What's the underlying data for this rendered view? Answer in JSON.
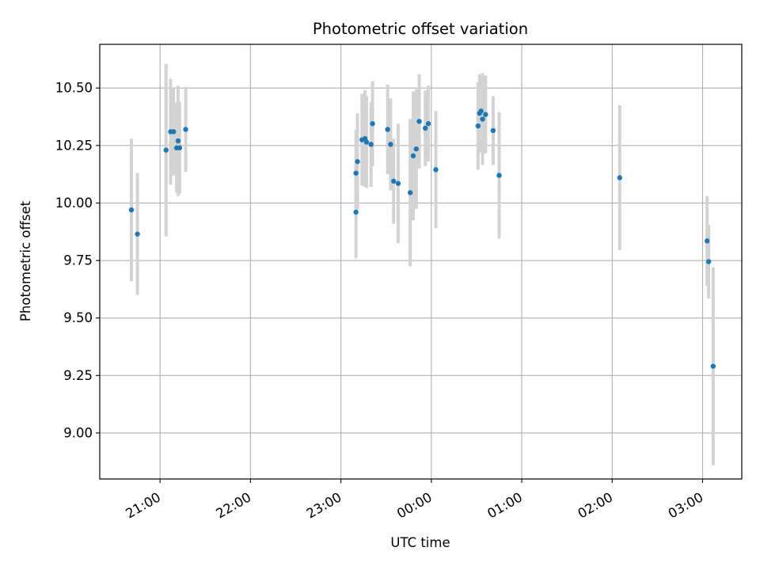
{
  "chart_data": {
    "type": "scatter",
    "title": "Photometric offset variation",
    "xlabel": "UTC time",
    "ylabel": "Photometric offset",
    "x_axis_type": "time",
    "x_ticks": [
      "21:00",
      "22:00",
      "23:00",
      "00:00",
      "01:00",
      "02:00",
      "03:00"
    ],
    "y_ticks": [
      "9.00",
      "9.25",
      "9.50",
      "9.75",
      "10.00",
      "10.25",
      "10.50"
    ],
    "xlim": [
      "20:20",
      "03:26"
    ],
    "ylim": [
      8.8,
      10.69
    ],
    "grid": true,
    "marker_color": "#1f77b4",
    "errorbar_color": "#d3d3d3",
    "points": [
      {
        "t": "20:41",
        "y": 9.97,
        "err": 0.31
      },
      {
        "t": "20:45",
        "y": 9.865,
        "err": 0.265
      },
      {
        "t": "21:04",
        "y": 10.23,
        "err": 0.375
      },
      {
        "t": "21:07",
        "y": 10.31,
        "err": 0.23
      },
      {
        "t": "21:09",
        "y": 10.31,
        "err": 0.19
      },
      {
        "t": "21:11",
        "y": 10.24,
        "err": 0.195
      },
      {
        "t": "21:12",
        "y": 10.27,
        "err": 0.24
      },
      {
        "t": "21:13",
        "y": 10.24,
        "err": 0.2
      },
      {
        "t": "21:17",
        "y": 10.32,
        "err": 0.185
      },
      {
        "t": "23:10",
        "y": 9.96,
        "err": 0.2
      },
      {
        "t": "23:10",
        "y": 10.13,
        "err": 0.19
      },
      {
        "t": "23:11",
        "y": 10.18,
        "err": 0.21
      },
      {
        "t": "23:14",
        "y": 10.275,
        "err": 0.2
      },
      {
        "t": "23:16",
        "y": 10.28,
        "err": 0.21
      },
      {
        "t": "23:17",
        "y": 10.265,
        "err": 0.2
      },
      {
        "t": "23:20",
        "y": 10.255,
        "err": 0.185
      },
      {
        "t": "23:21",
        "y": 10.345,
        "err": 0.185
      },
      {
        "t": "23:31",
        "y": 10.32,
        "err": 0.195
      },
      {
        "t": "23:33",
        "y": 10.255,
        "err": 0.2
      },
      {
        "t": "23:35",
        "y": 10.095,
        "err": 0.185
      },
      {
        "t": "23:38",
        "y": 10.085,
        "err": 0.26
      },
      {
        "t": "23:46",
        "y": 10.045,
        "err": 0.32
      },
      {
        "t": "23:48",
        "y": 10.205,
        "err": 0.28
      },
      {
        "t": "23:50",
        "y": 10.235,
        "err": 0.26
      },
      {
        "t": "23:52",
        "y": 10.355,
        "err": 0.205
      },
      {
        "t": "23:56",
        "y": 10.325,
        "err": 0.165
      },
      {
        "t": "23:58",
        "y": 10.345,
        "err": 0.165
      },
      {
        "t": "00:03",
        "y": 10.145,
        "err": 0.255
      },
      {
        "t": "00:31",
        "y": 10.335,
        "err": 0.19
      },
      {
        "t": "00:32",
        "y": 10.39,
        "err": 0.17
      },
      {
        "t": "00:33",
        "y": 10.4,
        "err": 0.16
      },
      {
        "t": "00:34",
        "y": 10.365,
        "err": 0.2
      },
      {
        "t": "00:36",
        "y": 10.385,
        "err": 0.17
      },
      {
        "t": "00:41",
        "y": 10.315,
        "err": 0.15
      },
      {
        "t": "00:45",
        "y": 10.12,
        "err": 0.275
      },
      {
        "t": "02:05",
        "y": 10.11,
        "err": 0.315
      },
      {
        "t": "03:03",
        "y": 9.835,
        "err": 0.195
      },
      {
        "t": "03:04",
        "y": 9.745,
        "err": 0.16
      },
      {
        "t": "03:07",
        "y": 9.29,
        "err": 0.43
      }
    ]
  }
}
